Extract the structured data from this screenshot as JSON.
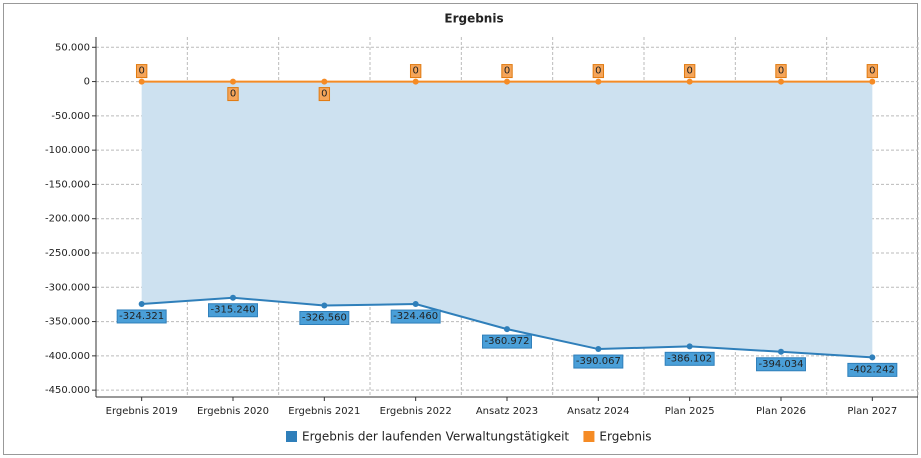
{
  "chart_data": {
    "type": "line",
    "title": "Ergebnis",
    "categories": [
      "Ergebnis 2019",
      "Ergebnis 2020",
      "Ergebnis 2021",
      "Ergebnis 2022",
      "Ansatz 2023",
      "Ansatz 2024",
      "Plan 2025",
      "Plan 2026",
      "Plan 2027"
    ],
    "series": [
      {
        "name": "Ergebnis der laufenden Verwaltungstätigkeit",
        "color": "#2f7fba",
        "area": true,
        "values": [
          -324321,
          -315240,
          -326560,
          -324460,
          -360972,
          -390067,
          -386102,
          -394034,
          -402242
        ],
        "value_labels": [
          "-324.321",
          "-315.240",
          "-326.560",
          "-324.460",
          "-360.972",
          "-390.067",
          "-386.102",
          "-394.034",
          "-402.242"
        ]
      },
      {
        "name": "Ergebnis",
        "color": "#f58b25",
        "values": [
          0,
          0,
          0,
          0,
          0,
          0,
          0,
          0,
          0
        ]
      }
    ],
    "ylim": [
      -460000,
      65000
    ],
    "yticks": [
      {
        "value": 50000,
        "label": "50.000"
      },
      0,
      {
        "value": -50000,
        "label": "-50.000"
      },
      {
        "value": -100000,
        "label": "-100.000"
      },
      {
        "value": -150000,
        "label": "-150.000"
      },
      {
        "value": -200000,
        "label": "-200.000"
      },
      {
        "value": -250000,
        "label": "-250.000"
      },
      {
        "value": -300000,
        "label": "-300.000"
      },
      {
        "value": -350000,
        "label": "-350.000"
      },
      {
        "value": -400000,
        "label": "-400.000"
      },
      {
        "value": -450000,
        "label": "-450.000"
      }
    ],
    "grid": true,
    "legend": "bottom"
  }
}
